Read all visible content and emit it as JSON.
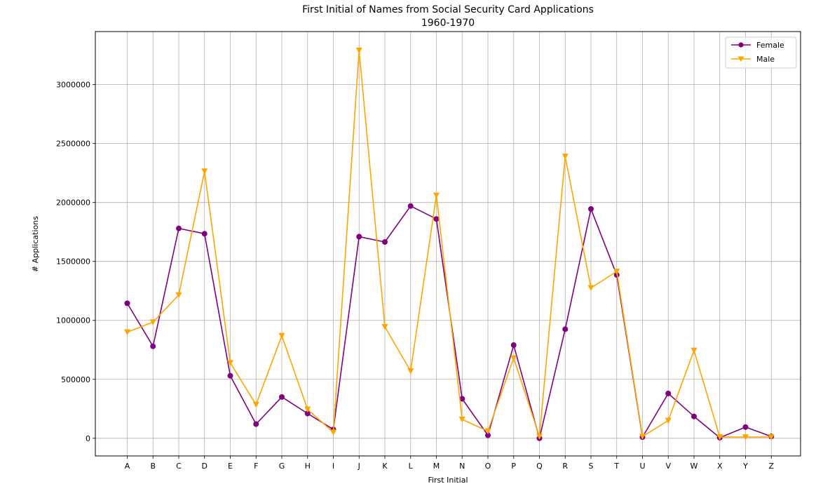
{
  "chart_data": {
    "type": "line",
    "title": "First Initial of Names from Social Security Card Applications",
    "subtitle": "1960-1970",
    "xlabel": "First Initial",
    "ylabel": "# Applications",
    "categories": [
      "A",
      "B",
      "C",
      "D",
      "E",
      "F",
      "G",
      "H",
      "I",
      "J",
      "K",
      "L",
      "M",
      "N",
      "O",
      "P",
      "Q",
      "R",
      "S",
      "T",
      "U",
      "V",
      "W",
      "X",
      "Y",
      "Z"
    ],
    "ylim": [
      -150000,
      3450000
    ],
    "yticks": [
      0,
      500000,
      1000000,
      1500000,
      2000000,
      2500000,
      3000000
    ],
    "ytick_labels": [
      "0",
      "500000",
      "1000000",
      "1500000",
      "2000000",
      "2500000",
      "3000000"
    ],
    "grid": true,
    "legend_position": "top-right",
    "series": [
      {
        "name": "Female",
        "color": "#800080",
        "marker": "circle",
        "values": [
          1145000,
          780000,
          1780000,
          1735000,
          530000,
          120000,
          350000,
          210000,
          75000,
          1710000,
          1665000,
          1970000,
          1860000,
          335000,
          25000,
          790000,
          0,
          925000,
          1945000,
          1385000,
          10000,
          380000,
          185000,
          5000,
          95000,
          15000
        ]
      },
      {
        "name": "Male",
        "color": "#FFA500",
        "marker": "triangle-down",
        "values": [
          900000,
          985000,
          1215000,
          2265000,
          640000,
          285000,
          870000,
          245000,
          50000,
          3290000,
          945000,
          570000,
          2060000,
          160000,
          60000,
          680000,
          15000,
          2390000,
          1275000,
          1415000,
          15000,
          150000,
          745000,
          10000,
          10000,
          10000
        ]
      }
    ]
  }
}
